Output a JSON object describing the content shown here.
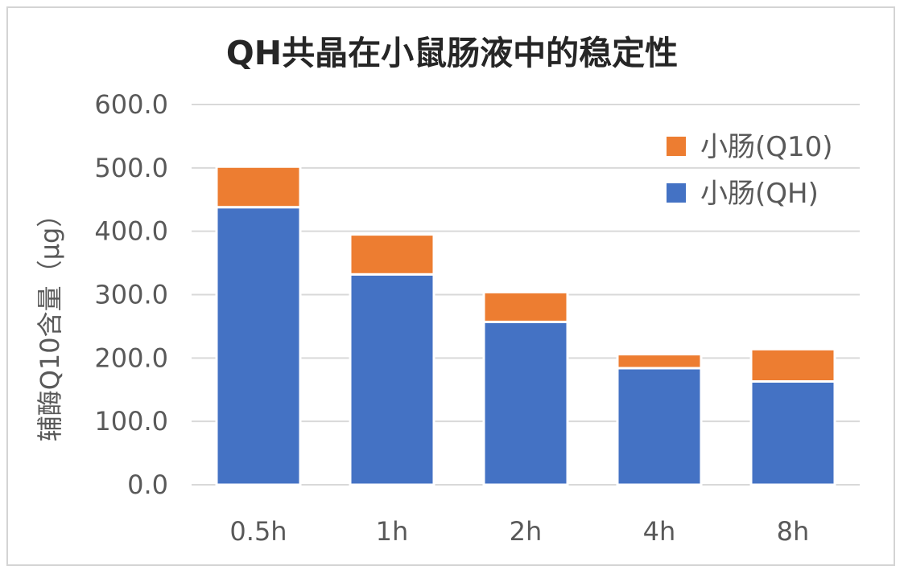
{
  "chart_data": {
    "type": "bar",
    "stacked": true,
    "title": "QH共晶在小鼠肠液中的稳定性",
    "ylabel": "辅酶Q10含量（μg）",
    "xlabel": "",
    "categories": [
      "0.5h",
      "1h",
      "2h",
      "4h",
      "8h"
    ],
    "ylim": [
      0,
      600
    ],
    "yticks": [
      0,
      100,
      200,
      300,
      400,
      500,
      600
    ],
    "ytick_labels": [
      "0.0",
      "100.0",
      "200.0",
      "300.0",
      "400.0",
      "500.0",
      "600.0"
    ],
    "grid": true,
    "legend_position": "top-right",
    "series": [
      {
        "name": "小肠(QH)",
        "values": [
          438,
          332,
          257,
          184,
          163
        ],
        "color": "#4472C4"
      },
      {
        "name": "小肠(Q10)",
        "values": [
          64,
          63,
          47,
          22,
          51
        ],
        "color": "#ED7D31"
      }
    ]
  }
}
